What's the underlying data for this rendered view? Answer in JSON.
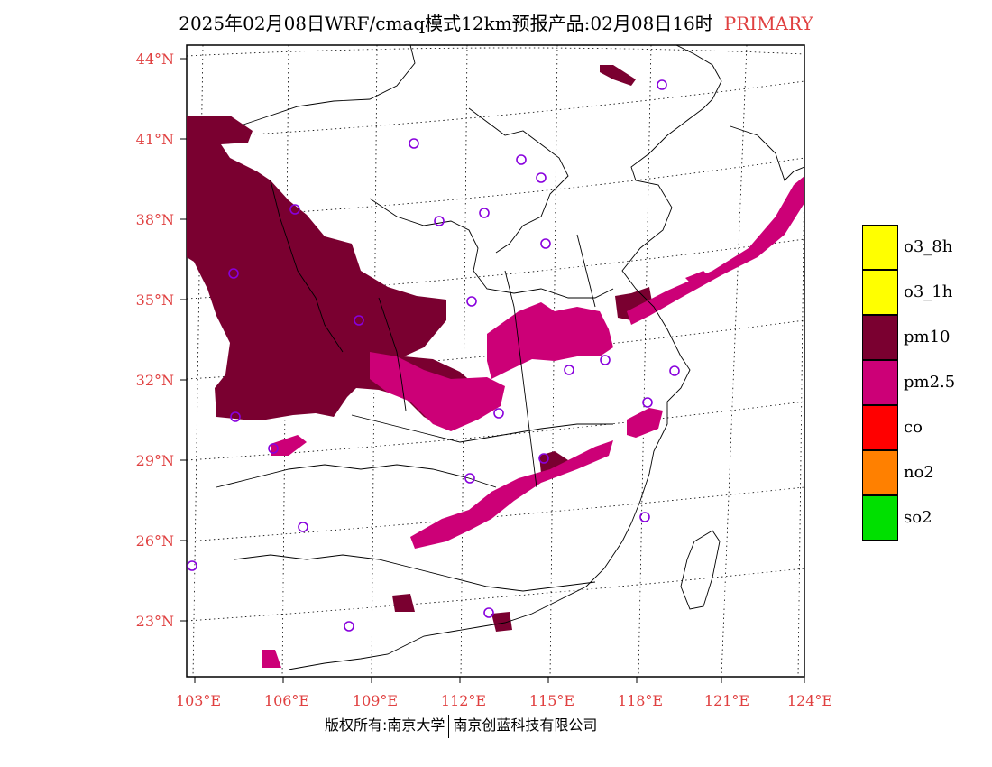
{
  "title": {
    "main": "2025年02月08日WRF/cmaq模式12km预报产品:02月08日16时",
    "tag": "PRIMARY"
  },
  "axes": {
    "lat_labels": [
      "44°N",
      "41°N",
      "38°N",
      "35°N",
      "32°N",
      "29°N",
      "26°N",
      "23°N"
    ],
    "lon_labels": [
      "103°E",
      "106°E",
      "109°E",
      "112°E",
      "115°E",
      "118°E",
      "121°E",
      "124°E"
    ],
    "label_color": "#e04040"
  },
  "legend": {
    "items": [
      {
        "label": "o3_8h",
        "color": "#ffff00"
      },
      {
        "label": "o3_1h",
        "color": "#ffff00"
      },
      {
        "label": "pm10",
        "color": "#7a0030"
      },
      {
        "label": "pm2.5",
        "color": "#cc0077"
      },
      {
        "label": "co",
        "color": "#ff0000"
      },
      {
        "label": "no2",
        "color": "#ff8000"
      },
      {
        "label": "so2",
        "color": "#00e000"
      }
    ]
  },
  "copyright": {
    "left": "版权所有:南京大学",
    "right": "南京创蓝科技有限公司"
  }
}
